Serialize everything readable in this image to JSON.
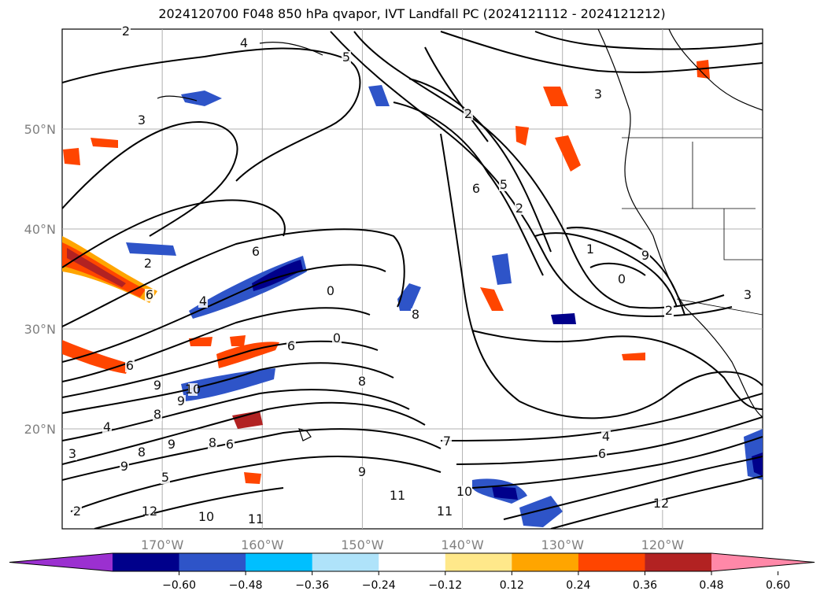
{
  "title": "2024120700 F048 850 hPa qvapor, IVT Landfall PC (2024121112 - 2024121212)",
  "map": {
    "lat_ticks": [
      {
        "lat": 50,
        "label": "50°N"
      },
      {
        "lat": 40,
        "label": "40°N"
      },
      {
        "lat": 30,
        "label": "30°N"
      },
      {
        "lat": 20,
        "label": "20°N"
      }
    ],
    "lon_ticks": [
      {
        "lon": -170,
        "label": "170°W"
      },
      {
        "lon": -160,
        "label": "160°W"
      },
      {
        "lon": -150,
        "label": "150°W"
      },
      {
        "lon": -140,
        "label": "140°W"
      },
      {
        "lon": -130,
        "label": "130°W"
      },
      {
        "lon": -120,
        "label": "120°W"
      }
    ],
    "lat_range": [
      10,
      60
    ],
    "lon_range": [
      -180,
      -110
    ],
    "gridlines": true,
    "contour_labels": [
      "2",
      "4",
      "5",
      "3",
      "2",
      "3",
      "2",
      "1",
      "0",
      "0",
      "2",
      "6",
      "2",
      "6",
      "4",
      "0",
      "8",
      "6",
      "6",
      "8",
      "9",
      "10",
      "9",
      "8",
      "4",
      "8",
      "9",
      "8",
      "6",
      "3",
      "9",
      "5",
      "2",
      "12",
      "10",
      "11",
      "9",
      "11",
      "10",
      "11",
      "12",
      "4",
      "6",
      "7",
      "2",
      "3",
      "6",
      "9",
      "5"
    ]
  },
  "colorbar": {
    "ticks": [
      "-0.60",
      "-0.48",
      "-0.36",
      "-0.24",
      "-0.12",
      "0.12",
      "0.24",
      "0.36",
      "0.48",
      "0.60"
    ],
    "colors": [
      "#9b30d0",
      "#00008b",
      "#2e54c8",
      "#00bfff",
      "#afe3fa",
      "#ffffff",
      "#ffe88a",
      "#ffa500",
      "#ff4500",
      "#b22222",
      "#ff88a8"
    ],
    "extend": "both"
  },
  "colors": {
    "neg_strong": "#00008b",
    "neg_mid": "#2e54c8",
    "neg_light": "#00bfff",
    "pos_light": "#ffa500",
    "pos_mid": "#ff4500",
    "pos_strong": "#b22222"
  }
}
